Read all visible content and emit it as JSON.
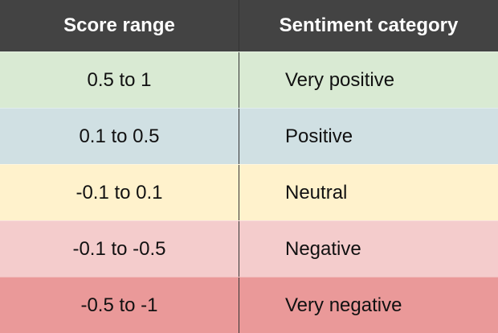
{
  "table": {
    "headers": [
      "Score range",
      "Sentiment category"
    ],
    "rows": [
      {
        "range": "0.5 to 1",
        "category": "Very positive",
        "color": "#d9ead3"
      },
      {
        "range": "0.1 to 0.5",
        "category": "Positive",
        "color": "#d0e0e3"
      },
      {
        "range": "-0.1 to 0.1",
        "category": "Neutral",
        "color": "#fff2cc"
      },
      {
        "range": "-0.1 to -0.5",
        "category": "Negative",
        "color": "#f4cccc"
      },
      {
        "range": "-0.5 to -1",
        "category": "Very negative",
        "color": "#ea9999"
      }
    ]
  },
  "colors": {
    "header_bg": "#434343",
    "header_text": "#ffffff"
  }
}
